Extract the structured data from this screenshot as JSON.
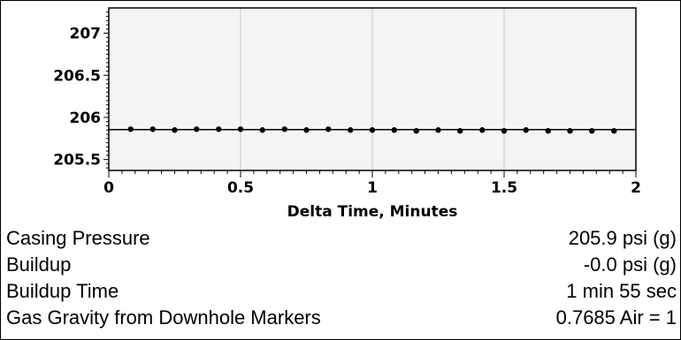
{
  "chart_data": {
    "type": "scatter",
    "title": "",
    "xlabel": "Delta Time, Minutes",
    "ylabel": "",
    "xlim": [
      0,
      2
    ],
    "ylim": [
      205.37,
      207.3
    ],
    "x_ticks": [
      0,
      0.5,
      1,
      1.5,
      2
    ],
    "x_tick_labels": [
      "0",
      "0.5",
      "1",
      "1.5",
      "2"
    ],
    "y_ticks": [
      205.5,
      206,
      206.5,
      207
    ],
    "y_tick_labels": [
      "205.5",
      "206",
      "206.5",
      "207"
    ],
    "grid": "vertical",
    "background": "#f4f4f4",
    "reference_line": 205.855,
    "points": [
      {
        "x": 0.083,
        "y": 205.86
      },
      {
        "x": 0.167,
        "y": 205.86
      },
      {
        "x": 0.25,
        "y": 205.85
      },
      {
        "x": 0.333,
        "y": 205.86
      },
      {
        "x": 0.417,
        "y": 205.86
      },
      {
        "x": 0.5,
        "y": 205.86
      },
      {
        "x": 0.583,
        "y": 205.85
      },
      {
        "x": 0.667,
        "y": 205.86
      },
      {
        "x": 0.75,
        "y": 205.85
      },
      {
        "x": 0.833,
        "y": 205.86
      },
      {
        "x": 0.917,
        "y": 205.85
      },
      {
        "x": 1.0,
        "y": 205.85
      },
      {
        "x": 1.083,
        "y": 205.85
      },
      {
        "x": 1.167,
        "y": 205.84
      },
      {
        "x": 1.25,
        "y": 205.85
      },
      {
        "x": 1.333,
        "y": 205.84
      },
      {
        "x": 1.417,
        "y": 205.85
      },
      {
        "x": 1.5,
        "y": 205.84
      },
      {
        "x": 1.583,
        "y": 205.85
      },
      {
        "x": 1.667,
        "y": 205.84
      },
      {
        "x": 1.75,
        "y": 205.84
      },
      {
        "x": 1.833,
        "y": 205.84
      },
      {
        "x": 1.917,
        "y": 205.84
      }
    ],
    "colors": {
      "points": "#000000",
      "grid": "#c8c8c8",
      "axes": "#000000"
    }
  },
  "info": {
    "rows": [
      {
        "label": "Casing Pressure",
        "value": "205.9 psi (g)"
      },
      {
        "label": "Buildup",
        "value": "-0.0 psi (g)"
      },
      {
        "label": "Buildup Time",
        "value": "1 min 55 sec"
      },
      {
        "label": "Gas Gravity from Downhole Markers",
        "value": "0.7685 Air = 1"
      }
    ]
  }
}
